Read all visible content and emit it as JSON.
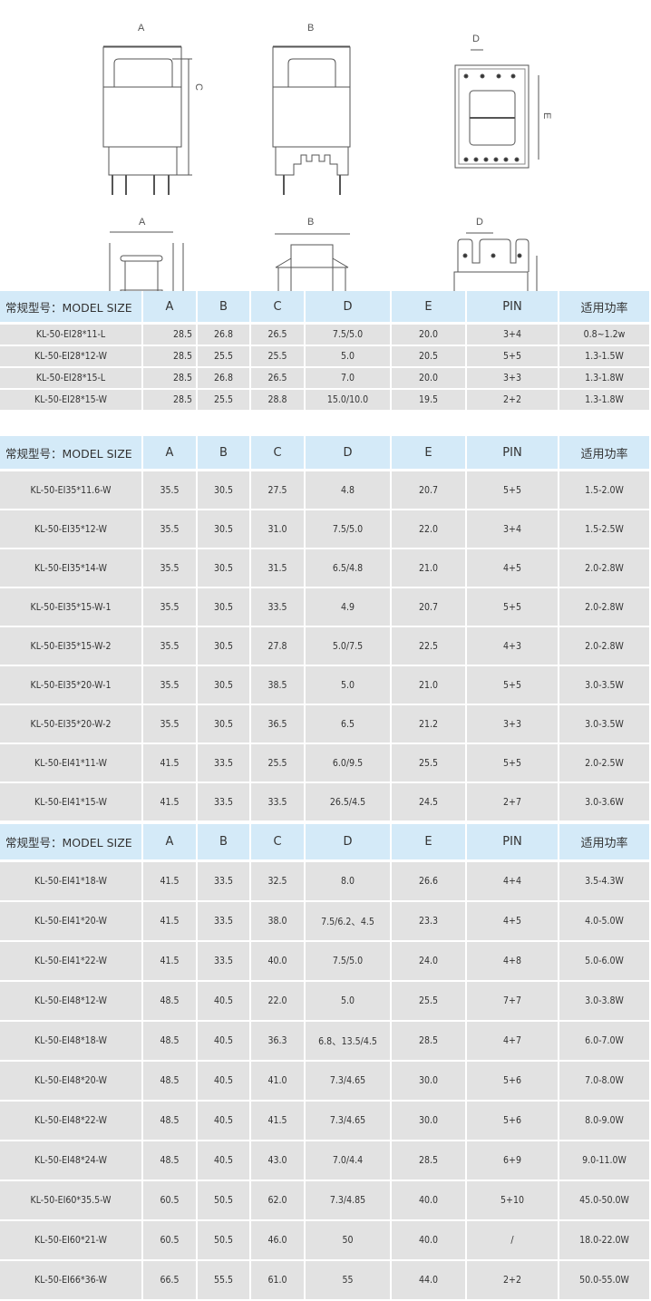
{
  "drawings": {
    "labels": {
      "a": "A",
      "b": "B",
      "c": "C",
      "d": "D",
      "e": "E"
    }
  },
  "headers": [
    "常规型号：MODEL SIZE",
    "A",
    "B",
    "C",
    "D",
    "E",
    "PIN",
    "适用功率"
  ],
  "tables": [
    {
      "rows": [
        [
          "KL-50-EI28*11-L",
          "28.5",
          "26.8",
          "26.5",
          "7.5/5.0",
          "20.0",
          "3+4",
          "0.8~1.2w"
        ],
        [
          "KL-50-EI28*12-W",
          "28.5",
          "25.5",
          "25.5",
          "5.0",
          "20.5",
          "5+5",
          "1.3-1.5W"
        ],
        [
          "KL-50-EI28*15-L",
          "28.5",
          "26.8",
          "26.5",
          "7.0",
          "20.0",
          "3+3",
          "1.3-1.8W"
        ],
        [
          "KL-50-EI28*15-W",
          "28.5",
          "25.5",
          "28.8",
          "15.0/10.0",
          "19.5",
          "2+2",
          "1.3-1.8W"
        ]
      ]
    },
    {
      "rows": [
        [
          "KL-50-EI35*11.6-W",
          "35.5",
          "30.5",
          "27.5",
          "4.8",
          "20.7",
          "5+5",
          "1.5-2.0W"
        ],
        [
          "KL-50-EI35*12-W",
          "35.5",
          "30.5",
          "31.0",
          "7.5/5.0",
          "22.0",
          "3+4",
          "1.5-2.5W"
        ],
        [
          "KL-50-EI35*14-W",
          "35.5",
          "30.5",
          "31.5",
          "6.5/4.8",
          "21.0",
          "4+5",
          "2.0-2.8W"
        ],
        [
          "KL-50-EI35*15-W-1",
          "35.5",
          "30.5",
          "33.5",
          "4.9",
          "20.7",
          "5+5",
          "2.0-2.8W"
        ],
        [
          "KL-50-EI35*15-W-2",
          "35.5",
          "30.5",
          "27.8",
          "5.0/7.5",
          "22.5",
          "4+3",
          "2.0-2.8W"
        ],
        [
          "KL-50-EI35*20-W-1",
          "35.5",
          "30.5",
          "38.5",
          "5.0",
          "21.0",
          "5+5",
          "3.0-3.5W"
        ],
        [
          "KL-50-EI35*20-W-2",
          "35.5",
          "30.5",
          "36.5",
          "6.5",
          "21.2",
          "3+3",
          "3.0-3.5W"
        ],
        [
          "KL-50-EI41*11-W",
          "41.5",
          "33.5",
          "25.5",
          "6.0/9.5",
          "25.5",
          "5+5",
          "2.0-2.5W"
        ],
        [
          "KL-50-EI41*15-W",
          "41.5",
          "33.5",
          "33.5",
          "26.5/4.5",
          "24.5",
          "2+7",
          "3.0-3.6W"
        ]
      ]
    },
    {
      "rows": [
        [
          "KL-50-EI41*18-W",
          "41.5",
          "33.5",
          "32.5",
          "8.0",
          "26.6",
          "4+4",
          "3.5-4.3W"
        ],
        [
          "KL-50-EI41*20-W",
          "41.5",
          "33.5",
          "38.0",
          "7.5/6.2、4.5",
          "23.3",
          "4+5",
          "4.0-5.0W"
        ],
        [
          "KL-50-EI41*22-W",
          "41.5",
          "33.5",
          "40.0",
          "7.5/5.0",
          "24.0",
          "4+8",
          "5.0-6.0W"
        ],
        [
          "KL-50-EI48*12-W",
          "48.5",
          "40.5",
          "22.0",
          "5.0",
          "25.5",
          "7+7",
          "3.0-3.8W"
        ],
        [
          "KL-50-EI48*18-W",
          "48.5",
          "40.5",
          "36.3",
          "6.8、13.5/4.5",
          "28.5",
          "4+7",
          "6.0-7.0W"
        ],
        [
          "KL-50-EI48*20-W",
          "48.5",
          "40.5",
          "41.0",
          "7.3/4.65",
          "30.0",
          "5+6",
          "7.0-8.0W"
        ],
        [
          "KL-50-EI48*22-W",
          "48.5",
          "40.5",
          "41.5",
          "7.3/4.65",
          "30.0",
          "5+6",
          "8.0-9.0W"
        ],
        [
          "KL-50-EI48*24-W",
          "48.5",
          "40.5",
          "43.0",
          "7.0/4.4",
          "28.5",
          "6+9",
          "9.0-11.0W"
        ],
        [
          "KL-50-EI60*35.5-W",
          "60.5",
          "50.5",
          "62.0",
          "7.3/4.85",
          "40.0",
          "5+10",
          "45.0-50.0W"
        ],
        [
          "KL-50-EI60*21-W",
          "60.5",
          "50.5",
          "46.0",
          "50",
          "40.0",
          "/",
          "18.0-22.0W"
        ],
        [
          "KL-50-EI66*36-W",
          "66.5",
          "55.5",
          "61.0",
          "55",
          "44.0",
          "2+2",
          "50.0-55.0W"
        ]
      ]
    }
  ]
}
